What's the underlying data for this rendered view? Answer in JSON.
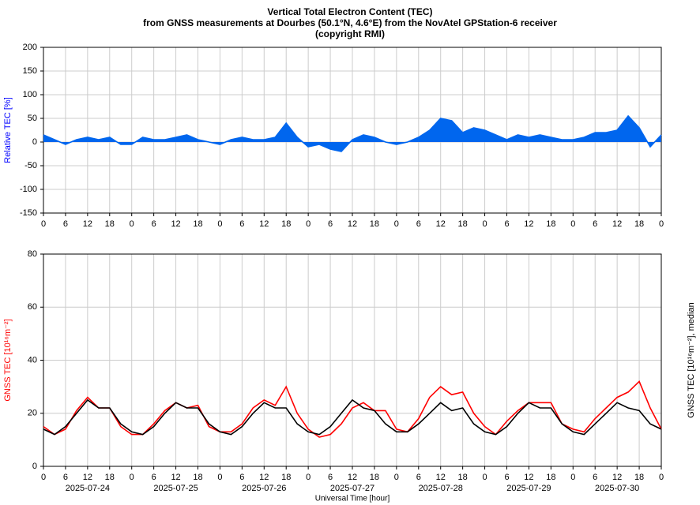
{
  "chart_data": [
    {
      "type": "area",
      "title": [
        "Vertical Total Electron Content (TEC)",
        "from GNSS measurements at Dourbes (50.1°N, 4.6°E) from the NovAtel GPStation-6 receiver",
        "(copyright RMI)"
      ],
      "y_label": "Relative TEC [%]",
      "y_label_color": "#0000ff",
      "x": [
        0,
        3,
        6,
        9,
        12,
        15,
        18,
        21,
        24,
        27,
        30,
        33,
        36,
        39,
        42,
        45,
        48,
        51,
        54,
        57,
        60,
        63,
        66,
        69,
        72,
        75,
        78,
        81,
        84,
        87,
        90,
        93,
        96,
        99,
        102,
        105,
        108,
        111,
        114,
        117,
        120,
        123,
        126,
        129,
        132,
        135,
        138,
        141,
        144,
        147,
        150,
        153,
        156,
        159,
        162,
        165,
        168
      ],
      "series": [
        {
          "color": "#0066ee",
          "values": [
            15,
            5,
            -5,
            5,
            10,
            5,
            10,
            -5,
            -5,
            10,
            5,
            5,
            10,
            15,
            5,
            0,
            -5,
            5,
            10,
            5,
            5,
            10,
            40,
            10,
            -10,
            -5,
            -15,
            -20,
            5,
            15,
            10,
            0,
            -5,
            0,
            10,
            25,
            50,
            45,
            20,
            30,
            25,
            15,
            5,
            15,
            10,
            15,
            10,
            5,
            5,
            10,
            20,
            20,
            25,
            55,
            30,
            -10,
            15
          ]
        }
      ],
      "xlim": [
        0,
        168
      ],
      "xticks": [
        0,
        6,
        12,
        18,
        {
          "value": 24,
          "label": "0"
        },
        {
          "value": 30,
          "label": "6"
        },
        {
          "value": 36,
          "label": "12"
        },
        {
          "value": 42,
          "label": "18"
        },
        {
          "value": 48,
          "label": "0"
        },
        {
          "value": 54,
          "label": "6"
        },
        {
          "value": 60,
          "label": "12"
        },
        {
          "value": 66,
          "label": "18"
        },
        {
          "value": 72,
          "label": "0"
        },
        {
          "value": 78,
          "label": "6"
        },
        {
          "value": 84,
          "label": "12"
        },
        {
          "value": 90,
          "label": "18"
        },
        {
          "value": 96,
          "label": "0"
        },
        {
          "value": 102,
          "label": "6"
        },
        {
          "value": 108,
          "label": "12"
        },
        {
          "value": 114,
          "label": "18"
        },
        {
          "value": 120,
          "label": "0"
        },
        {
          "value": 126,
          "label": "6"
        },
        {
          "value": 132,
          "label": "12"
        },
        {
          "value": 138,
          "label": "18"
        },
        {
          "value": 144,
          "label": "0"
        },
        {
          "value": 150,
          "label": "6"
        },
        {
          "value": 156,
          "label": "12"
        },
        {
          "value": 162,
          "label": "18"
        },
        {
          "value": 168,
          "label": "0"
        }
      ],
      "ylim": [
        -150,
        200
      ],
      "yticks": [
        -150,
        -100,
        -50,
        0,
        50,
        100,
        150,
        200
      ],
      "grid": true
    },
    {
      "type": "line",
      "y_label": "GNSS TEC [10¹⁶m⁻²]",
      "y_label_color": "#ff0000",
      "right_label": "GNSS TEC [10¹⁶m⁻²], median",
      "x_label": "Universal Time [hour]",
      "date_labels": [
        {
          "value": 12,
          "label": "2025-07-24"
        },
        {
          "value": 36,
          "label": "2025-07-25"
        },
        {
          "value": 60,
          "label": "2025-07-26"
        },
        {
          "value": 84,
          "label": "2025-07-27"
        },
        {
          "value": 108,
          "label": "2025-07-28"
        },
        {
          "value": 132,
          "label": "2025-07-29"
        },
        {
          "value": 156,
          "label": "2025-07-30"
        }
      ],
      "x": [
        0,
        3,
        6,
        9,
        12,
        15,
        18,
        21,
        24,
        27,
        30,
        33,
        36,
        39,
        42,
        45,
        48,
        51,
        54,
        57,
        60,
        63,
        66,
        69,
        72,
        75,
        78,
        81,
        84,
        87,
        90,
        93,
        96,
        99,
        102,
        105,
        108,
        111,
        114,
        117,
        120,
        123,
        126,
        129,
        132,
        135,
        138,
        141,
        144,
        147,
        150,
        153,
        156,
        159,
        162,
        165,
        168
      ],
      "series": [
        {
          "color": "#ff0000",
          "values": [
            15,
            12,
            14,
            21,
            26,
            22,
            22,
            15,
            12,
            12,
            16,
            21,
            24,
            22,
            23,
            15,
            13,
            13,
            16,
            22,
            25,
            23,
            30,
            20,
            14,
            11,
            12,
            16,
            22,
            24,
            21,
            21,
            14,
            13,
            18,
            26,
            30,
            27,
            28,
            20,
            15,
            12,
            17,
            21,
            24,
            24,
            24,
            16,
            14,
            13,
            18,
            22,
            26,
            28,
            32,
            22,
            14
          ]
        },
        {
          "color": "#000000",
          "values": [
            14,
            12,
            15,
            20,
            25,
            22,
            22,
            16,
            13,
            12,
            15,
            20,
            24,
            22,
            22,
            16,
            13,
            12,
            15,
            20,
            24,
            22,
            22,
            16,
            13,
            12,
            15,
            20,
            25,
            22,
            21,
            16,
            13,
            13,
            16,
            20,
            24,
            21,
            22,
            16,
            13,
            12,
            15,
            20,
            24,
            22,
            22,
            16,
            13,
            12,
            16,
            20,
            24,
            22,
            21,
            16,
            14
          ]
        }
      ],
      "xlim": [
        0,
        168
      ],
      "xticks": [
        0,
        6,
        12,
        18,
        {
          "value": 24,
          "label": "0"
        },
        {
          "value": 30,
          "label": "6"
        },
        {
          "value": 36,
          "label": "12"
        },
        {
          "value": 42,
          "label": "18"
        },
        {
          "value": 48,
          "label": "0"
        },
        {
          "value": 54,
          "label": "6"
        },
        {
          "value": 60,
          "label": "12"
        },
        {
          "value": 66,
          "label": "18"
        },
        {
          "value": 72,
          "label": "0"
        },
        {
          "value": 78,
          "label": "6"
        },
        {
          "value": 84,
          "label": "12"
        },
        {
          "value": 90,
          "label": "18"
        },
        {
          "value": 96,
          "label": "0"
        },
        {
          "value": 102,
          "label": "6"
        },
        {
          "value": 108,
          "label": "12"
        },
        {
          "value": 114,
          "label": "18"
        },
        {
          "value": 120,
          "label": "0"
        },
        {
          "value": 126,
          "label": "6"
        },
        {
          "value": 132,
          "label": "12"
        },
        {
          "value": 138,
          "label": "18"
        },
        {
          "value": 144,
          "label": "0"
        },
        {
          "value": 150,
          "label": "6"
        },
        {
          "value": 156,
          "label": "12"
        },
        {
          "value": 162,
          "label": "18"
        },
        {
          "value": 168,
          "label": "0"
        }
      ],
      "ylim": [
        0,
        80
      ],
      "yticks": [
        0,
        20,
        40,
        60,
        80
      ],
      "grid": true
    }
  ]
}
